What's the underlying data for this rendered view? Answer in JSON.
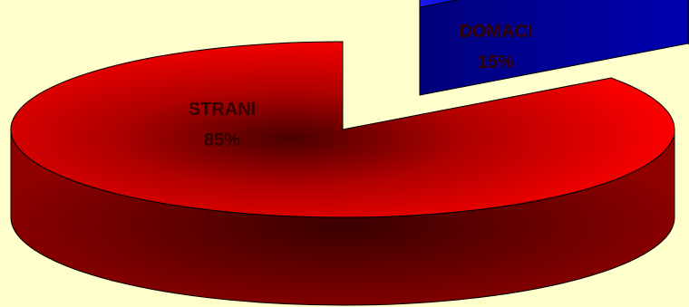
{
  "chart_data": {
    "type": "pie",
    "style": "3d-exploded",
    "background": "#ffffcc",
    "slices": [
      {
        "label": "STRANI",
        "value": 85,
        "display": "85%",
        "color": "#ff0000",
        "side_color": "#7a0000",
        "exploded": false
      },
      {
        "label": "DOMACI",
        "value": 15,
        "display": "15%",
        "color": "#1a1aff",
        "side_color": "#00007a",
        "exploded": true
      }
    ],
    "label_color": "#330000",
    "legend": "none"
  }
}
